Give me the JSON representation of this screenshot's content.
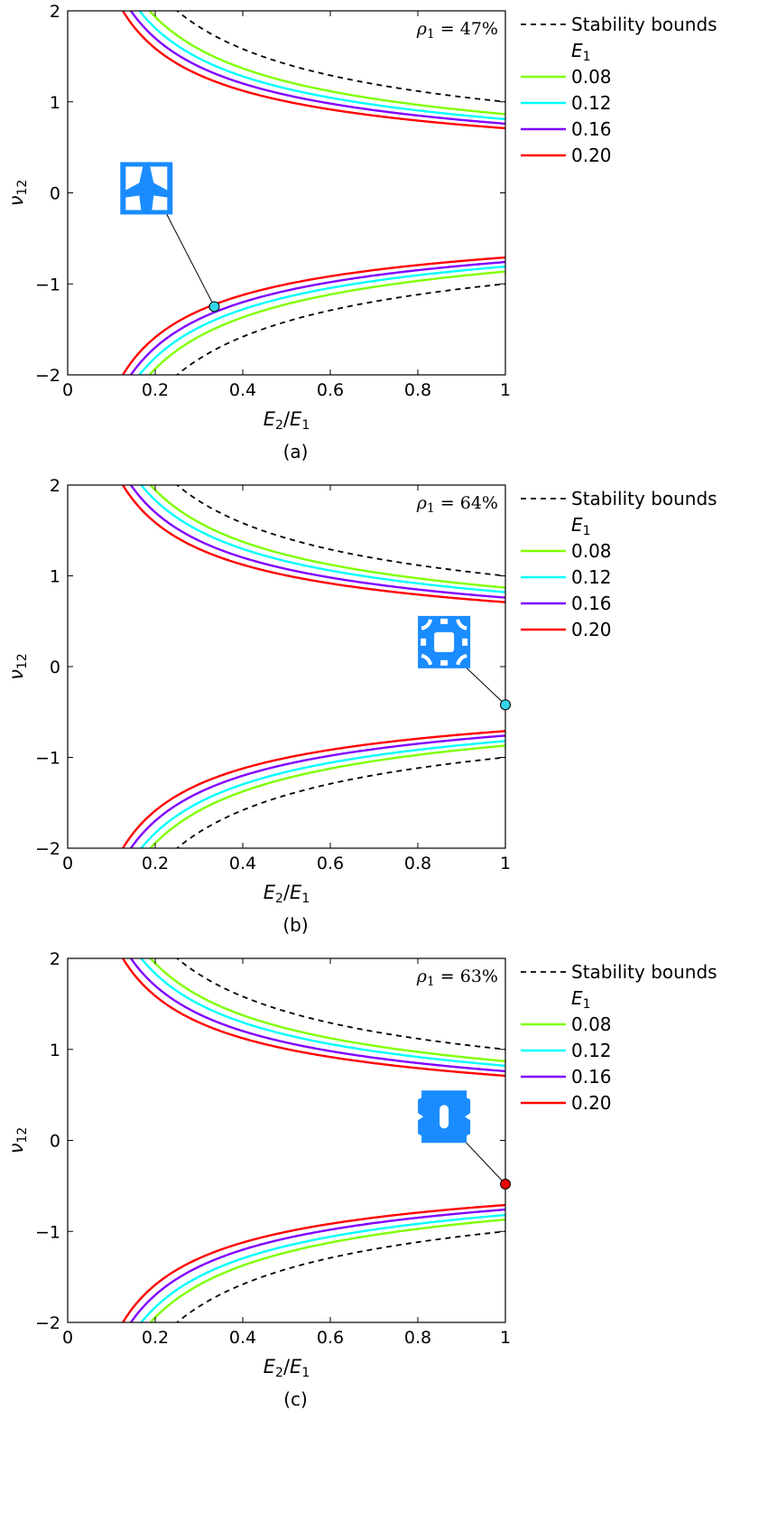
{
  "chart_data": [
    {
      "type": "line",
      "caption": "(a)",
      "annotation": {
        "symbol": "ρ",
        "sub": "1",
        "value": "= 47%"
      },
      "xlabel": {
        "main": "E",
        "sub2": "2",
        "slash": "/",
        "main2": "E",
        "sub1": "1"
      },
      "ylabel": {
        "main": "ν",
        "sub": "12"
      },
      "xlim": [
        0,
        1
      ],
      "ylim": [
        -2,
        2
      ],
      "xticks": [
        "0",
        "0.2",
        "0.4",
        "0.6",
        "0.8",
        "1"
      ],
      "yticks": [
        "−2",
        "−1",
        "0",
        "1",
        "2"
      ],
      "legend_title": {
        "main": "E",
        "sub": "1"
      },
      "series": [
        {
          "name": "Stability bounds",
          "color": "#000000",
          "dashed": true,
          "c": 1.0
        },
        {
          "name": "0.08",
          "color": "#80ff00",
          "dashed": false,
          "c": 0.865
        },
        {
          "name": "0.12",
          "color": "#00ffff",
          "dashed": false,
          "c": 0.81
        },
        {
          "name": "0.16",
          "color": "#8000ff",
          "dashed": false,
          "c": 0.76
        },
        {
          "name": "0.20",
          "color": "#ff0000",
          "dashed": false,
          "c": 0.71
        }
      ],
      "marker": {
        "x": 0.335,
        "y": -1.25,
        "color": "#33d6e6"
      },
      "inset": {
        "x": 0.18,
        "y": 0.05,
        "shape": "cell-a"
      }
    },
    {
      "type": "line",
      "caption": "(b)",
      "annotation": {
        "symbol": "ρ",
        "sub": "1",
        "value": "= 64%"
      },
      "xlabel": {
        "main": "E",
        "sub2": "2",
        "slash": "/",
        "main2": "E",
        "sub1": "1"
      },
      "ylabel": {
        "main": "ν",
        "sub": "12"
      },
      "xlim": [
        0,
        1
      ],
      "ylim": [
        -2,
        2
      ],
      "xticks": [
        "0",
        "0.2",
        "0.4",
        "0.6",
        "0.8",
        "1"
      ],
      "yticks": [
        "−2",
        "−1",
        "0",
        "1",
        "2"
      ],
      "legend_title": {
        "main": "E",
        "sub": "1"
      },
      "series": [
        {
          "name": "Stability bounds",
          "color": "#000000",
          "dashed": true,
          "c": 1.0
        },
        {
          "name": "0.08",
          "color": "#80ff00",
          "dashed": false,
          "c": 0.87
        },
        {
          "name": "0.12",
          "color": "#00ffff",
          "dashed": false,
          "c": 0.82
        },
        {
          "name": "0.16",
          "color": "#8000ff",
          "dashed": false,
          "c": 0.76
        },
        {
          "name": "0.20",
          "color": "#ff0000",
          "dashed": false,
          "c": 0.71
        }
      ],
      "marker": {
        "x": 1.0,
        "y": -0.42,
        "color": "#33d6e6"
      },
      "inset": {
        "x": 0.86,
        "y": 0.27,
        "shape": "cell-b"
      }
    },
    {
      "type": "line",
      "caption": "(c)",
      "annotation": {
        "symbol": "ρ",
        "sub": "1",
        "value": "= 63%"
      },
      "xlabel": {
        "main": "E",
        "sub2": "2",
        "slash": "/",
        "main2": "E",
        "sub1": "1"
      },
      "ylabel": {
        "main": "ν",
        "sub": "12"
      },
      "xlim": [
        0,
        1
      ],
      "ylim": [
        -2,
        2
      ],
      "xticks": [
        "0",
        "0.2",
        "0.4",
        "0.6",
        "0.8",
        "1"
      ],
      "yticks": [
        "−2",
        "−1",
        "0",
        "1",
        "2"
      ],
      "legend_title": {
        "main": "E",
        "sub": "1"
      },
      "series": [
        {
          "name": "Stability bounds",
          "color": "#000000",
          "dashed": true,
          "c": 1.0
        },
        {
          "name": "0.08",
          "color": "#80ff00",
          "dashed": false,
          "c": 0.87
        },
        {
          "name": "0.12",
          "color": "#00ffff",
          "dashed": false,
          "c": 0.82
        },
        {
          "name": "0.16",
          "color": "#8000ff",
          "dashed": false,
          "c": 0.76
        },
        {
          "name": "0.20",
          "color": "#ff0000",
          "dashed": false,
          "c": 0.71
        }
      ],
      "marker": {
        "x": 1.0,
        "y": -0.48,
        "color": "#e60000"
      },
      "inset": {
        "x": 0.86,
        "y": 0.26,
        "shape": "cell-c"
      }
    }
  ],
  "colors": {
    "inset_fill": "#1a8cff",
    "axis": "#000000"
  }
}
